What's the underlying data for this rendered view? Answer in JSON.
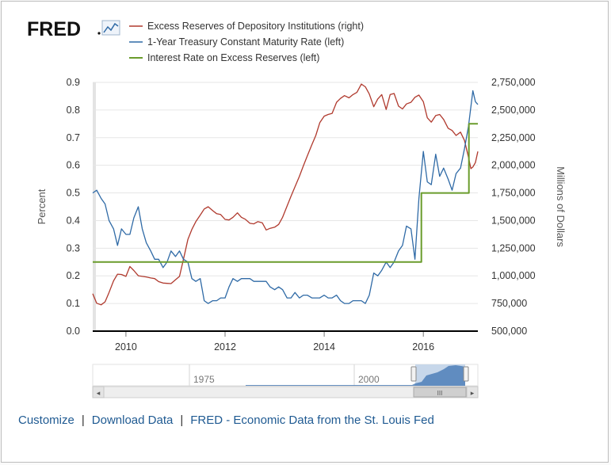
{
  "brand": {
    "logo_text": "FRED"
  },
  "chart_data": {
    "type": "line",
    "title": "",
    "xlabel": "",
    "ylabel": "Percent",
    "y2label": "Millions of Dollars",
    "ylim": [
      0,
      0.9
    ],
    "y2lim": [
      500000,
      2750000
    ],
    "xlim": [
      2009.33,
      2017.1
    ],
    "yticks": [
      "0.0",
      "0.1",
      "0.2",
      "0.3",
      "0.4",
      "0.5",
      "0.6",
      "0.7",
      "0.8",
      "0.9"
    ],
    "y2ticks": [
      "500,000",
      "750,000",
      "1,000,000",
      "1,250,000",
      "1,500,000",
      "1,750,000",
      "2,000,000",
      "2,250,000",
      "2,500,000",
      "2,750,000"
    ],
    "xticks": [
      "2010",
      "2012",
      "2014",
      "2016"
    ],
    "legend": [
      {
        "label": "Excess Reserves of Depository Institutions (right)",
        "color": "#b03a2e"
      },
      {
        "label": "1-Year Treasury Constant Maturity Rate (left)",
        "color": "#2f6aa6"
      },
      {
        "label": "Interest Rate on Excess Reserves (left)",
        "color": "#6a9c2c"
      }
    ],
    "series": [
      {
        "name": "Excess Reserves of Depository Institutions (right)",
        "axis": "right",
        "color": "#b03a2e",
        "points": [
          [
            2009.33,
            838000
          ],
          [
            2009.41,
            752000
          ],
          [
            2009.5,
            738000
          ],
          [
            2009.58,
            765000
          ],
          [
            2009.66,
            850000
          ],
          [
            2009.75,
            955000
          ],
          [
            2009.83,
            1015000
          ],
          [
            2009.91,
            1012000
          ],
          [
            2010.0,
            995000
          ],
          [
            2010.08,
            1085000
          ],
          [
            2010.16,
            1048000
          ],
          [
            2010.25,
            1001000
          ],
          [
            2010.33,
            995000
          ],
          [
            2010.41,
            990000
          ],
          [
            2010.5,
            981000
          ],
          [
            2010.58,
            975000
          ],
          [
            2010.66,
            948000
          ],
          [
            2010.75,
            935000
          ],
          [
            2010.83,
            932000
          ],
          [
            2010.91,
            930000
          ],
          [
            2011.0,
            965000
          ],
          [
            2011.08,
            995000
          ],
          [
            2011.16,
            1150000
          ],
          [
            2011.25,
            1330000
          ],
          [
            2011.33,
            1420000
          ],
          [
            2011.41,
            1490000
          ],
          [
            2011.5,
            1550000
          ],
          [
            2011.58,
            1605000
          ],
          [
            2011.66,
            1625000
          ],
          [
            2011.75,
            1590000
          ],
          [
            2011.83,
            1562000
          ],
          [
            2011.91,
            1555000
          ],
          [
            2012.0,
            1510000
          ],
          [
            2012.08,
            1505000
          ],
          [
            2012.16,
            1530000
          ],
          [
            2012.25,
            1570000
          ],
          [
            2012.33,
            1530000
          ],
          [
            2012.41,
            1512000
          ],
          [
            2012.5,
            1475000
          ],
          [
            2012.58,
            1470000
          ],
          [
            2012.66,
            1490000
          ],
          [
            2012.75,
            1480000
          ],
          [
            2012.83,
            1415000
          ],
          [
            2012.91,
            1430000
          ],
          [
            2013.0,
            1440000
          ],
          [
            2013.08,
            1465000
          ],
          [
            2013.16,
            1530000
          ],
          [
            2013.25,
            1630000
          ],
          [
            2013.33,
            1720000
          ],
          [
            2013.41,
            1805000
          ],
          [
            2013.5,
            1900000
          ],
          [
            2013.58,
            1995000
          ],
          [
            2013.66,
            2085000
          ],
          [
            2013.75,
            2185000
          ],
          [
            2013.83,
            2270000
          ],
          [
            2013.91,
            2385000
          ],
          [
            2014.0,
            2445000
          ],
          [
            2014.08,
            2460000
          ],
          [
            2014.16,
            2470000
          ],
          [
            2014.25,
            2570000
          ],
          [
            2014.33,
            2605000
          ],
          [
            2014.41,
            2630000
          ],
          [
            2014.5,
            2610000
          ],
          [
            2014.58,
            2640000
          ],
          [
            2014.66,
            2660000
          ],
          [
            2014.75,
            2735000
          ],
          [
            2014.83,
            2710000
          ],
          [
            2014.91,
            2645000
          ],
          [
            2015.0,
            2530000
          ],
          [
            2015.08,
            2600000
          ],
          [
            2015.16,
            2640000
          ],
          [
            2015.25,
            2505000
          ],
          [
            2015.33,
            2640000
          ],
          [
            2015.41,
            2650000
          ],
          [
            2015.5,
            2535000
          ],
          [
            2015.58,
            2510000
          ],
          [
            2015.66,
            2555000
          ],
          [
            2015.75,
            2570000
          ],
          [
            2015.83,
            2615000
          ],
          [
            2015.91,
            2635000
          ],
          [
            2016.0,
            2575000
          ],
          [
            2016.08,
            2430000
          ],
          [
            2016.16,
            2390000
          ],
          [
            2016.25,
            2450000
          ],
          [
            2016.33,
            2460000
          ],
          [
            2016.41,
            2415000
          ],
          [
            2016.5,
            2335000
          ],
          [
            2016.58,
            2315000
          ],
          [
            2016.66,
            2270000
          ],
          [
            2016.75,
            2300000
          ],
          [
            2016.83,
            2225000
          ],
          [
            2016.91,
            2075000
          ],
          [
            2016.96,
            1970000
          ],
          [
            2017.0,
            1985000
          ],
          [
            2017.05,
            2025000
          ],
          [
            2017.1,
            2125000
          ]
        ]
      },
      {
        "name": "1-Year Treasury Constant Maturity Rate (left)",
        "axis": "left",
        "color": "#2f6aa6",
        "points": [
          [
            2009.33,
            0.5
          ],
          [
            2009.41,
            0.51
          ],
          [
            2009.5,
            0.48
          ],
          [
            2009.58,
            0.46
          ],
          [
            2009.66,
            0.4
          ],
          [
            2009.75,
            0.37
          ],
          [
            2009.83,
            0.31
          ],
          [
            2009.91,
            0.37
          ],
          [
            2010.0,
            0.35
          ],
          [
            2010.08,
            0.35
          ],
          [
            2010.16,
            0.41
          ],
          [
            2010.25,
            0.45
          ],
          [
            2010.33,
            0.37
          ],
          [
            2010.41,
            0.32
          ],
          [
            2010.5,
            0.29
          ],
          [
            2010.58,
            0.26
          ],
          [
            2010.66,
            0.26
          ],
          [
            2010.75,
            0.23
          ],
          [
            2010.83,
            0.25
          ],
          [
            2010.91,
            0.29
          ],
          [
            2011.0,
            0.27
          ],
          [
            2011.08,
            0.29
          ],
          [
            2011.16,
            0.26
          ],
          [
            2011.25,
            0.25
          ],
          [
            2011.33,
            0.19
          ],
          [
            2011.41,
            0.18
          ],
          [
            2011.5,
            0.19
          ],
          [
            2011.58,
            0.11
          ],
          [
            2011.66,
            0.1
          ],
          [
            2011.75,
            0.11
          ],
          [
            2011.83,
            0.11
          ],
          [
            2011.91,
            0.12
          ],
          [
            2012.0,
            0.12
          ],
          [
            2012.08,
            0.16
          ],
          [
            2012.16,
            0.19
          ],
          [
            2012.25,
            0.18
          ],
          [
            2012.33,
            0.19
          ],
          [
            2012.41,
            0.19
          ],
          [
            2012.5,
            0.19
          ],
          [
            2012.58,
            0.18
          ],
          [
            2012.66,
            0.18
          ],
          [
            2012.75,
            0.18
          ],
          [
            2012.83,
            0.18
          ],
          [
            2012.91,
            0.16
          ],
          [
            2013.0,
            0.15
          ],
          [
            2013.08,
            0.16
          ],
          [
            2013.16,
            0.15
          ],
          [
            2013.25,
            0.12
          ],
          [
            2013.33,
            0.12
          ],
          [
            2013.41,
            0.14
          ],
          [
            2013.5,
            0.12
          ],
          [
            2013.58,
            0.13
          ],
          [
            2013.66,
            0.13
          ],
          [
            2013.75,
            0.12
          ],
          [
            2013.83,
            0.12
          ],
          [
            2013.91,
            0.12
          ],
          [
            2014.0,
            0.13
          ],
          [
            2014.08,
            0.12
          ],
          [
            2014.16,
            0.12
          ],
          [
            2014.25,
            0.13
          ],
          [
            2014.33,
            0.11
          ],
          [
            2014.41,
            0.1
          ],
          [
            2014.5,
            0.1
          ],
          [
            2014.58,
            0.11
          ],
          [
            2014.66,
            0.11
          ],
          [
            2014.75,
            0.11
          ],
          [
            2014.83,
            0.1
          ],
          [
            2014.91,
            0.13
          ],
          [
            2015.0,
            0.21
          ],
          [
            2015.08,
            0.2
          ],
          [
            2015.16,
            0.22
          ],
          [
            2015.25,
            0.25
          ],
          [
            2015.33,
            0.23
          ],
          [
            2015.41,
            0.25
          ],
          [
            2015.5,
            0.29
          ],
          [
            2015.58,
            0.31
          ],
          [
            2015.66,
            0.38
          ],
          [
            2015.75,
            0.37
          ],
          [
            2015.83,
            0.26
          ],
          [
            2015.91,
            0.48
          ],
          [
            2016.0,
            0.65
          ],
          [
            2016.08,
            0.54
          ],
          [
            2016.16,
            0.53
          ],
          [
            2016.25,
            0.64
          ],
          [
            2016.33,
            0.56
          ],
          [
            2016.41,
            0.59
          ],
          [
            2016.5,
            0.55
          ],
          [
            2016.58,
            0.51
          ],
          [
            2016.66,
            0.57
          ],
          [
            2016.75,
            0.59
          ],
          [
            2016.83,
            0.66
          ],
          [
            2016.91,
            0.74
          ],
          [
            2017.0,
            0.87
          ],
          [
            2017.05,
            0.83
          ],
          [
            2017.1,
            0.82
          ]
        ]
      },
      {
        "name": "Interest Rate on Excess Reserves (left)",
        "axis": "left",
        "color": "#6a9c2c",
        "step": true,
        "points": [
          [
            2009.33,
            0.25
          ],
          [
            2015.96,
            0.25
          ],
          [
            2015.96,
            0.5
          ],
          [
            2016.92,
            0.5
          ],
          [
            2016.92,
            0.75
          ],
          [
            2017.1,
            0.75
          ]
        ]
      }
    ]
  },
  "navigator": {
    "labels": [
      "1975",
      "2000"
    ],
    "scroll_left": "◂",
    "scroll_right": "▸",
    "grip": "III"
  },
  "footer": {
    "customize": "Customize",
    "download": "Download Data",
    "fred_link": "FRED - Economic Data from the St. Louis Fed",
    "sep": "|"
  }
}
